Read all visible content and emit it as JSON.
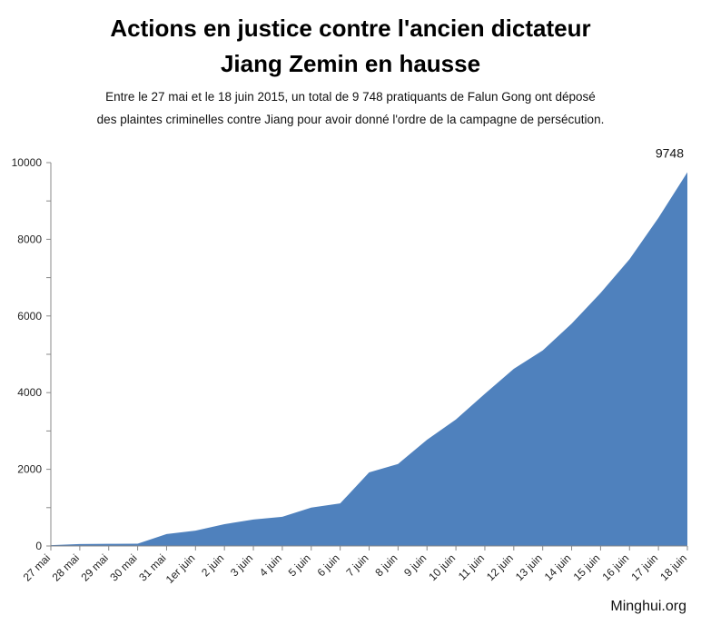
{
  "header": {
    "title_line1": "Actions en justice contre l'ancien dictateur",
    "title_line2": "Jiang Zemin en hausse",
    "subtitle_line1": "Entre le 27 mai et le 18 juin 2015, un total de 9 748 pratiquants de Falun Gong ont déposé",
    "subtitle_line2": "des plaintes criminelles contre Jiang pour avoir donné l'ordre de la campagne de persécution."
  },
  "footer": {
    "source": "Minghui.org"
  },
  "chart_data": {
    "type": "area",
    "categories": [
      "27 mai",
      "28 mai",
      "29 mai",
      "30 mai",
      "31 mai",
      "1er juin",
      "2 juin",
      "3 juin",
      "4 juin",
      "5 juin",
      "6 juin",
      "7 juin",
      "8 juin",
      "9 juin",
      "10 juin",
      "11 juin",
      "12 juin",
      "13 juin",
      "14 juin",
      "15 juin",
      "16 juin",
      "17 juin",
      "18 juin"
    ],
    "series": [
      {
        "values": [
          20,
          50,
          55,
          60,
          310,
          400,
          570,
          690,
          760,
          1000,
          1110,
          1920,
          2140,
          2770,
          3300,
          3970,
          4620,
          5100,
          5800,
          6600,
          7480,
          8560,
          9748
        ]
      }
    ],
    "yticks": [
      "0",
      "2000",
      "4000",
      "6000",
      "8000",
      "10000"
    ],
    "ylim": [
      0,
      10000
    ],
    "annotation": "9748",
    "color": "#4f81bd",
    "grid": false,
    "legend": "none"
  }
}
